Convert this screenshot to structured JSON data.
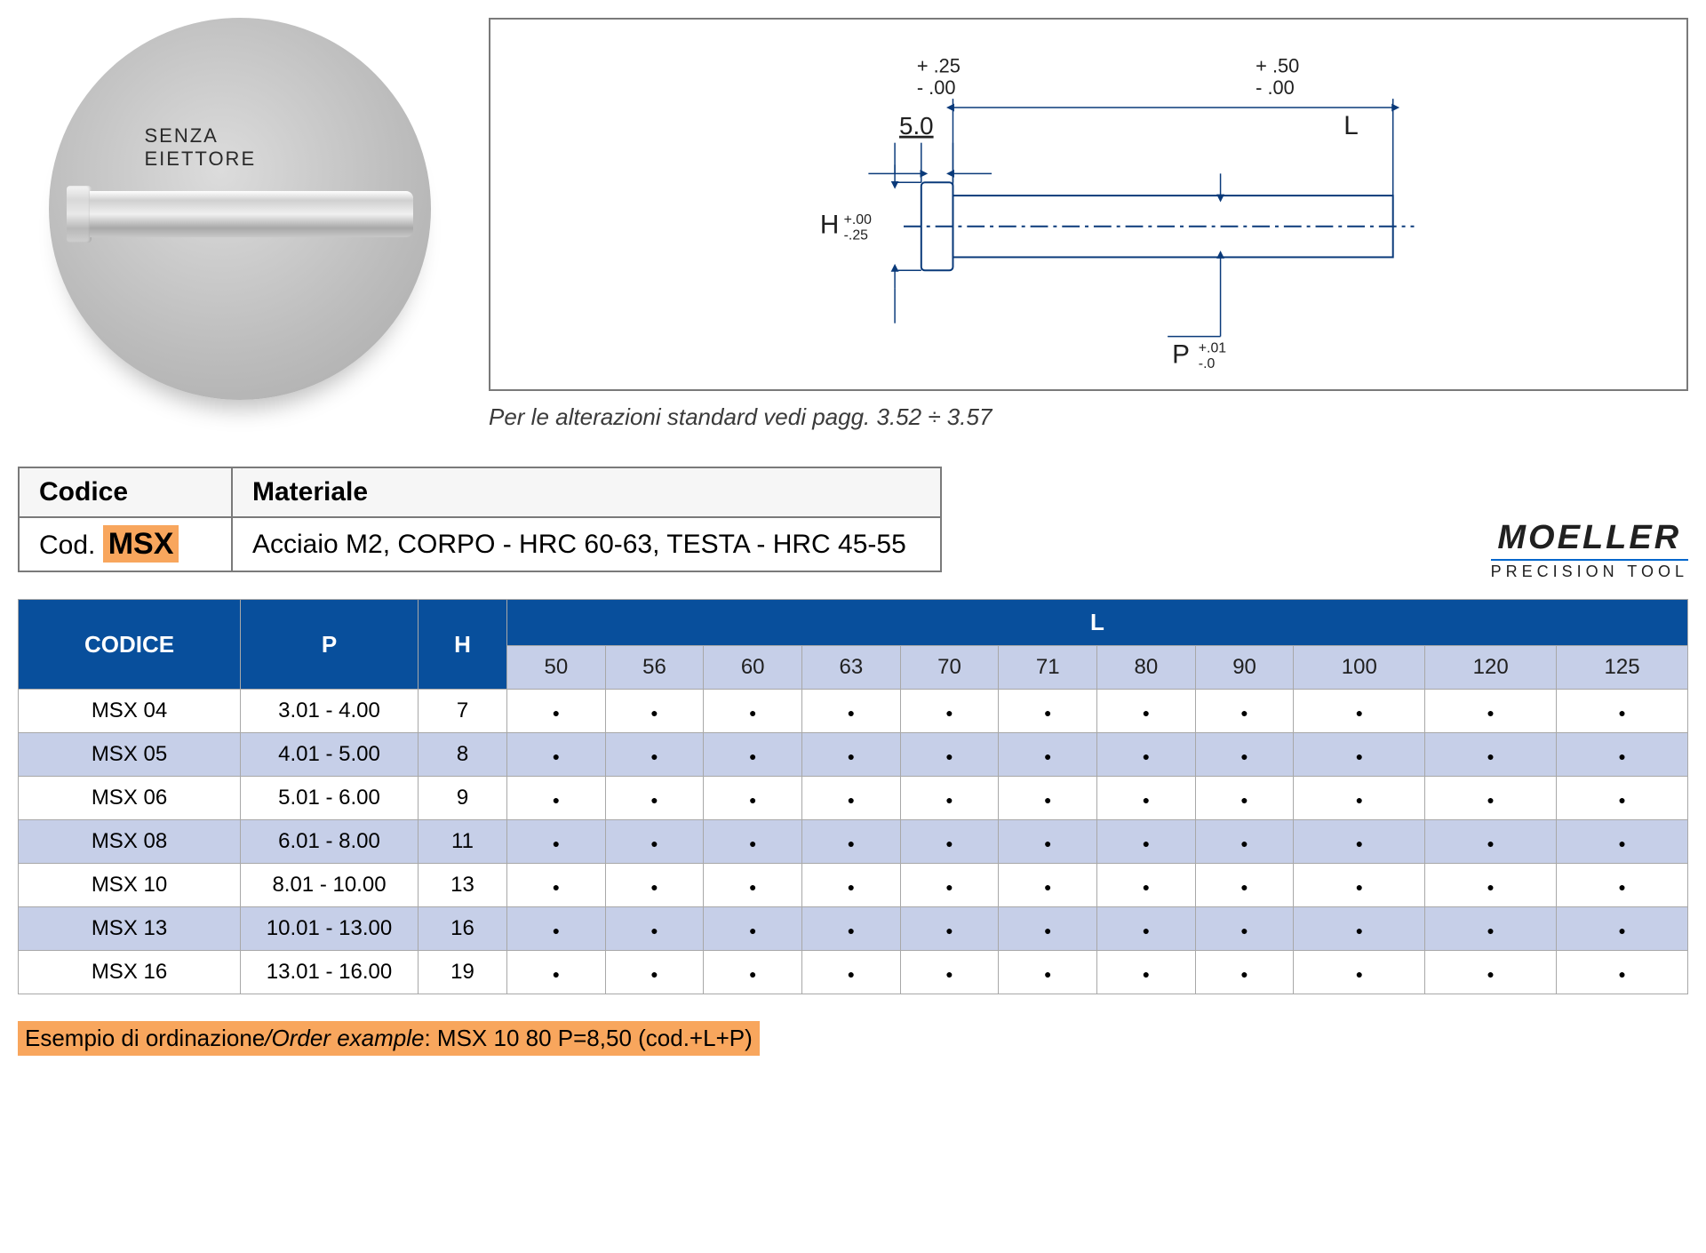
{
  "circle": {
    "label": "SENZA EIETTORE"
  },
  "diagram": {
    "note": "Per le alterazioni standard vedi pagg. 3.52 ÷ 3.57",
    "five": "5.0",
    "L": "L",
    "L_tol_plus": "+ .50",
    "L_tol_minus": "-  .00",
    "shank_tol_plus": "+ .25",
    "shank_tol_minus": "-  .00",
    "H": "H",
    "H_tol_plus": "+.00",
    "H_tol_minus": "-.25",
    "P": "P",
    "P_tol_plus": "+.01",
    "P_tol_minus": "-.0"
  },
  "mat": {
    "codice_hdr": "Codice",
    "materiale_hdr": "Materiale",
    "cod_prefix": "Cod.",
    "code": "MSX",
    "material_text": "Acciaio M2, CORPO - HRC 60-63, TESTA - HRC 45-55"
  },
  "logo": {
    "main": "MOELLER",
    "sub": "PRECISION TOOL"
  },
  "table": {
    "hdr_codice": "CODICE",
    "hdr_P": "P",
    "hdr_H": "H",
    "hdr_L": "L",
    "L_cols": [
      "50",
      "56",
      "60",
      "63",
      "70",
      "71",
      "80",
      "90",
      "100",
      "120",
      "125"
    ],
    "rows": [
      {
        "code": "MSX 04",
        "P": "3.01 - 4.00",
        "H": "7",
        "dots": [
          1,
          1,
          1,
          1,
          1,
          1,
          1,
          1,
          1,
          1,
          1
        ]
      },
      {
        "code": "MSX 05",
        "P": "4.01 - 5.00",
        "H": "8",
        "dots": [
          1,
          1,
          1,
          1,
          1,
          1,
          1,
          1,
          1,
          1,
          1
        ]
      },
      {
        "code": "MSX 06",
        "P": "5.01 - 6.00",
        "H": "9",
        "dots": [
          1,
          1,
          1,
          1,
          1,
          1,
          1,
          1,
          1,
          1,
          1
        ]
      },
      {
        "code": "MSX 08",
        "P": "6.01 - 8.00",
        "H": "11",
        "dots": [
          1,
          1,
          1,
          1,
          1,
          1,
          1,
          1,
          1,
          1,
          1
        ]
      },
      {
        "code": "MSX 10",
        "P": "8.01 - 10.00",
        "H": "13",
        "dots": [
          1,
          1,
          1,
          1,
          1,
          1,
          1,
          1,
          1,
          1,
          1
        ]
      },
      {
        "code": "MSX 13",
        "P": "10.01 - 13.00",
        "H": "16",
        "dots": [
          1,
          1,
          1,
          1,
          1,
          1,
          1,
          1,
          1,
          1,
          1
        ]
      },
      {
        "code": "MSX 16",
        "P": "13.01 - 16.00",
        "H": "19",
        "dots": [
          1,
          1,
          1,
          1,
          1,
          1,
          1,
          1,
          1,
          1,
          1
        ]
      }
    ]
  },
  "footer": {
    "prefix_it": "Esempio di ordinazione",
    "prefix_en": "/Order example",
    "example": ": MSX 10 80 P=8,50 (cod.+L+P)"
  },
  "style": {
    "header_blue": "#084f9c",
    "alt_row": "#c6cfe8",
    "highlight": "#f8a65d"
  }
}
